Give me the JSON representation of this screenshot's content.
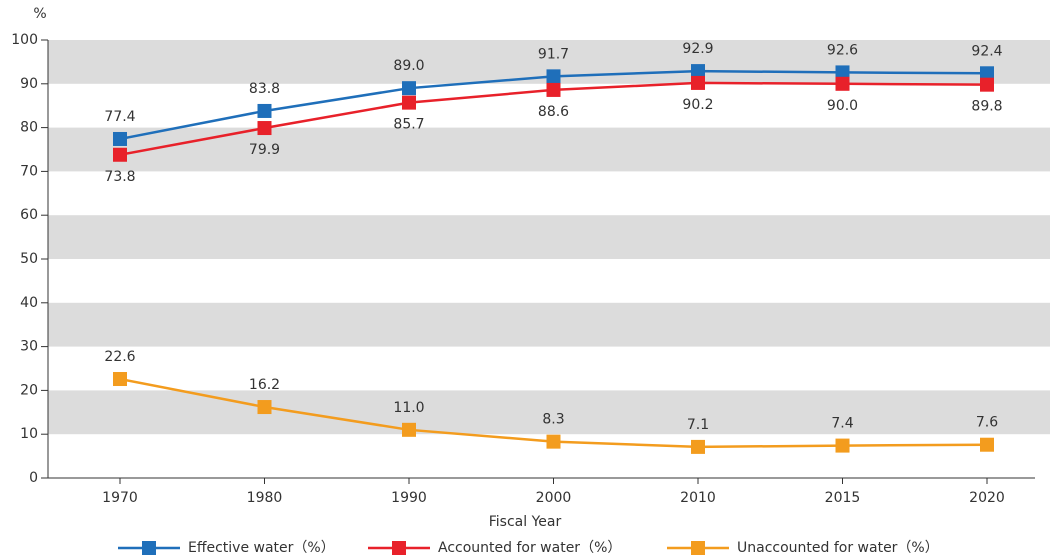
{
  "chart_data": {
    "type": "line",
    "y_axis_label": "%",
    "x_axis_label": "Fiscal Year",
    "categories": [
      "1970",
      "1980",
      "1990",
      "2000",
      "2010",
      "2015",
      "2020"
    ],
    "series": [
      {
        "name": "Effective water（%）",
        "color": "#1f6fba",
        "values": [
          77.4,
          83.8,
          89.0,
          91.7,
          92.9,
          92.6,
          92.4
        ],
        "value_labels": [
          "77.4",
          "83.8",
          "89.0",
          "91.7",
          "92.9",
          "92.6",
          "92.4"
        ]
      },
      {
        "name": "Accounted for water（%）",
        "color": "#e8212a",
        "values": [
          73.8,
          79.9,
          85.7,
          88.6,
          90.2,
          90.0,
          89.8
        ],
        "value_labels": [
          "73.8",
          "79.9",
          "85.7",
          "88.6",
          "90.2",
          "90.0",
          "89.8"
        ]
      },
      {
        "name": "Unaccounted for water（%）",
        "color": "#f39c1e",
        "values": [
          22.6,
          16.2,
          11.0,
          8.3,
          7.1,
          7.4,
          7.6
        ],
        "value_labels": [
          "22.6",
          "16.2",
          "11.0",
          "8.3",
          "7.1",
          "7.4",
          "7.6"
        ]
      }
    ],
    "ylim": [
      0,
      100
    ],
    "yticks": [
      0,
      10,
      20,
      30,
      40,
      50,
      60,
      70,
      80,
      90,
      100
    ],
    "grid": "bands",
    "band_color": "#dcdcdc",
    "legend": "bottom"
  }
}
